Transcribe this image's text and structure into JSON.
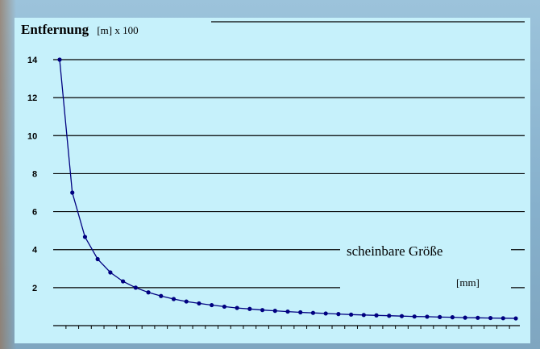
{
  "chart_data": {
    "type": "line",
    "title": "Entfernung",
    "ylabel_unit": "[m]  x 100",
    "xlabel": "scheinbare Größe",
    "xlabel_unit": "[mm]",
    "ylim": [
      0,
      14
    ],
    "yticks": [
      2,
      4,
      6,
      8,
      10,
      12,
      14
    ],
    "grid": true,
    "colors": {
      "line": "#000080",
      "grid": "#000000",
      "background": "#c6f1fb"
    },
    "series": [
      {
        "x": [
          1,
          2,
          3,
          4,
          5,
          6,
          7,
          8,
          9,
          10,
          11,
          12,
          13,
          14,
          15,
          16,
          17,
          18,
          19,
          20,
          21,
          22,
          23,
          24,
          25,
          26,
          27,
          28,
          29,
          30,
          31,
          32,
          33,
          34,
          35,
          36,
          37
        ],
        "values": [
          14,
          7,
          4.67,
          3.5,
          2.8,
          2.33,
          2,
          1.75,
          1.56,
          1.4,
          1.27,
          1.17,
          1.08,
          1,
          0.93,
          0.88,
          0.82,
          0.78,
          0.74,
          0.7,
          0.67,
          0.64,
          0.61,
          0.58,
          0.56,
          0.54,
          0.52,
          0.5,
          0.48,
          0.47,
          0.45,
          0.44,
          0.42,
          0.41,
          0.4,
          0.39,
          0.38
        ]
      }
    ]
  }
}
